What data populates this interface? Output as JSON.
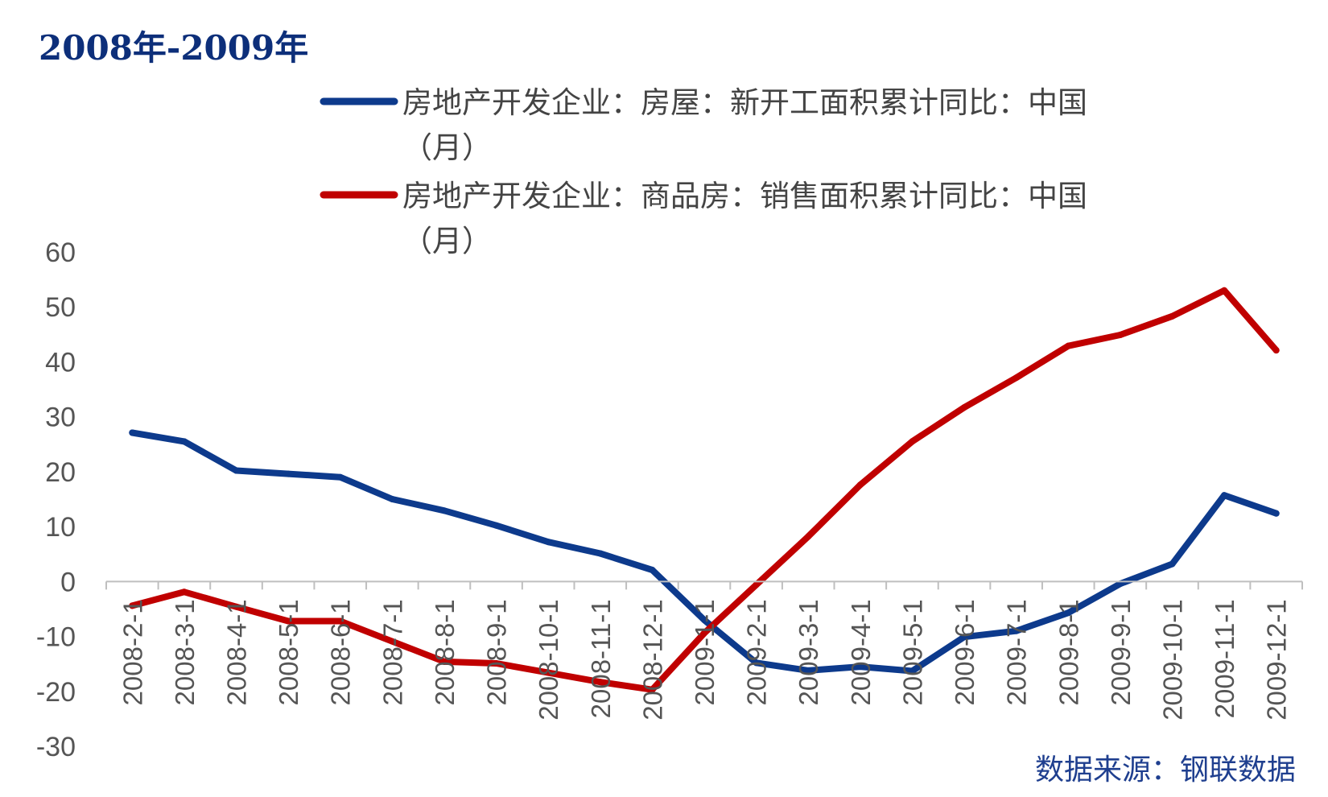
{
  "title": "2008年-2009年",
  "source": "数据来源：钢联数据",
  "chart_data": {
    "type": "line",
    "title": "2008年-2009年",
    "categories": [
      "2008-2-1",
      "2008-3-1",
      "2008-4-1",
      "2008-5-1",
      "2008-6-1",
      "2008-7-1",
      "2008-8-1",
      "2008-9-1",
      "2008-10-1",
      "2008-11-1",
      "2008-12-1",
      "2009-1-1",
      "2009-2-1",
      "2009-3-1",
      "2009-4-1",
      "2009-5-1",
      "2009-6-1",
      "2009-7-1",
      "2009-8-1",
      "2009-9-1",
      "2009-10-1",
      "2009-11-1",
      "2009-12-1"
    ],
    "xlabel": "",
    "ylabel": "",
    "ylim": [
      -30,
      60
    ],
    "yticks": [
      60,
      50,
      40,
      30,
      20,
      10,
      0,
      -10,
      -20,
      -30
    ],
    "grid": false,
    "legend_position": "top",
    "series": [
      {
        "name_line1": "房地产开发企业：房屋：新开工面积累计同比：中国",
        "name_line2": "（月）",
        "color": "#0d3a8c",
        "values": [
          27.1,
          25.5,
          20.2,
          19.6,
          19.0,
          15.0,
          12.9,
          10.2,
          7.2,
          5.1,
          2.1,
          -7.0,
          -14.8,
          -16.2,
          -15.5,
          -16.3,
          -10.1,
          -9.0,
          -5.7,
          -0.4,
          3.2,
          15.7,
          12.4
        ]
      },
      {
        "name_line1": "房地产开发企业：商品房：销售面积累计同比：中国",
        "name_line2": "（月）",
        "color": "#c00000",
        "values": [
          -4.4,
          -1.9,
          -4.6,
          -7.2,
          -7.2,
          -10.9,
          -14.6,
          -14.9,
          -16.6,
          -18.3,
          -19.7,
          -9.4,
          -0.6,
          8.2,
          17.6,
          25.5,
          31.7,
          37.1,
          42.9,
          44.9,
          48.3,
          53.0,
          42.1
        ]
      }
    ]
  }
}
